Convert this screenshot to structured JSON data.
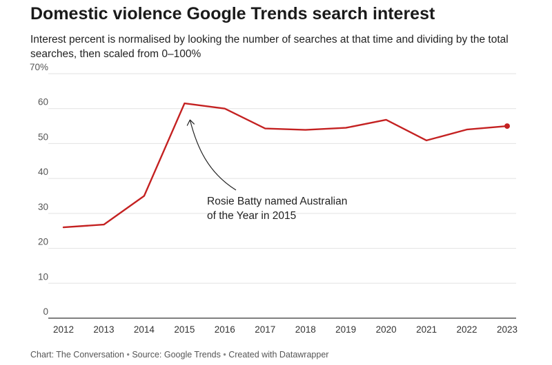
{
  "colors": {
    "line": "#c42121",
    "grid": "#e2e2e2",
    "axis": "#333333",
    "tick_text": "#555555"
  },
  "chart_data": {
    "type": "line",
    "title": "Domestic violence Google Trends search interest",
    "subtitle": "Interest percent is normalised by looking the number of searches at that time and dividing by the total searches, then scaled from 0–100%",
    "x": [
      2012,
      2013,
      2014,
      2015,
      2016,
      2017,
      2018,
      2019,
      2020,
      2021,
      2022,
      2023
    ],
    "x_tick_labels": [
      "2012",
      "2013",
      "2014",
      "2015",
      "2016",
      "2017",
      "2018",
      "2019",
      "2020",
      "2021",
      "2022",
      "2023"
    ],
    "series": [
      {
        "values": [
          26,
          26.8,
          35,
          61.5,
          60,
          54.3,
          53.9,
          54.5,
          56.8,
          50.9,
          54,
          55
        ]
      }
    ],
    "ylim": [
      0,
      70
    ],
    "y_ticks": [
      0,
      10,
      20,
      30,
      40,
      50,
      60,
      70
    ],
    "y_tick_labels": [
      "0",
      "10",
      "20",
      "30",
      "40",
      "50",
      "60",
      "70%"
    ],
    "grid": true,
    "annotation": {
      "x": 2015,
      "y": 61.5,
      "lines": [
        "Rosie Batty named Australian",
        "of the Year in 2015"
      ]
    }
  },
  "footer": {
    "chart_credit": "Chart: The Conversation",
    "separator": "•",
    "source": "Source: Google Trends",
    "created_with": "Created with Datawrapper"
  }
}
